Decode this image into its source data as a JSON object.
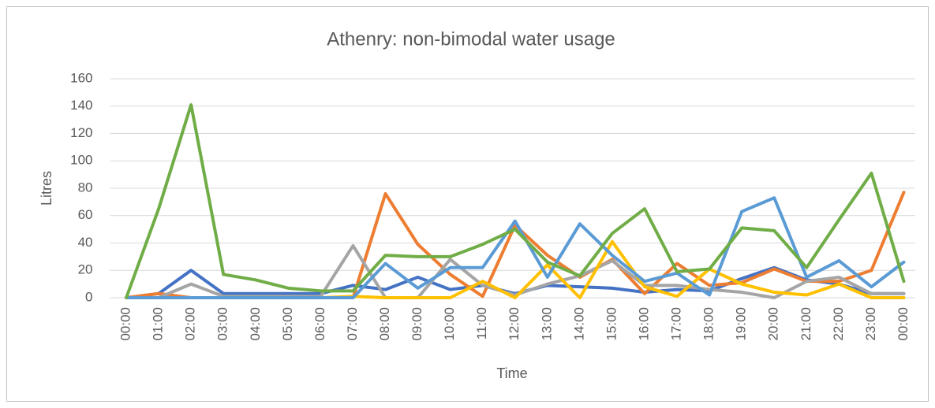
{
  "chart_data": {
    "type": "line",
    "title": "Athenry: non-bimodal water usage",
    "x_label": "Time",
    "y_label": "Litres",
    "categories": [
      "00:00",
      "01:00",
      "02:00",
      "03:00",
      "04:00",
      "05:00",
      "06:00",
      "07:00",
      "08:00",
      "09:00",
      "10:00",
      "11:00",
      "12:00",
      "13:00",
      "14:00",
      "15:00",
      "16:00",
      "17:00",
      "18:00",
      "19:00",
      "20:00",
      "21:00",
      "22:00",
      "23:00",
      "00:00"
    ],
    "series": [
      {
        "color": "#4472c4",
        "values": [
          0,
          3,
          20,
          3,
          3,
          3,
          3,
          9,
          6,
          15,
          6,
          9,
          3,
          9,
          8,
          7,
          4,
          6,
          5,
          14,
          22,
          13,
          10,
          3,
          3
        ]
      },
      {
        "color": "#ed7d31",
        "values": [
          0,
          3,
          0,
          0,
          0,
          0,
          0,
          0,
          76,
          39,
          17,
          1,
          53,
          31,
          15,
          28,
          3,
          25,
          9,
          11,
          21,
          12,
          12,
          20,
          77
        ]
      },
      {
        "color": "#a5a5a5",
        "values": [
          0,
          0,
          10,
          1,
          1,
          1,
          1,
          38,
          0,
          0,
          28,
          9,
          2,
          10,
          16,
          27,
          9,
          9,
          6,
          4,
          0,
          12,
          15,
          3,
          3
        ]
      },
      {
        "color": "#ffc000",
        "values": [
          0,
          0,
          0,
          0,
          0,
          0,
          0,
          1,
          0,
          0,
          0,
          12,
          0,
          24,
          0,
          41,
          8,
          1,
          21,
          10,
          4,
          2,
          10,
          0,
          0
        ]
      },
      {
        "color": "#5b9bd5",
        "values": [
          0,
          0,
          0,
          0,
          0,
          0,
          0,
          0,
          25,
          7,
          22,
          22,
          56,
          15,
          54,
          31,
          12,
          18,
          2,
          63,
          73,
          15,
          27,
          8,
          26
        ]
      },
      {
        "color": "#70ad47",
        "values": [
          0,
          65,
          141,
          17,
          13,
          7,
          5,
          5,
          31,
          30,
          30,
          39,
          50,
          26,
          16,
          47,
          65,
          19,
          21,
          51,
          49,
          22,
          57,
          91,
          12
        ]
      }
    ],
    "ylim": [
      0,
      160
    ],
    "yticks": [
      0,
      20,
      40,
      60,
      80,
      100,
      120,
      140,
      160
    ],
    "grid": true
  }
}
